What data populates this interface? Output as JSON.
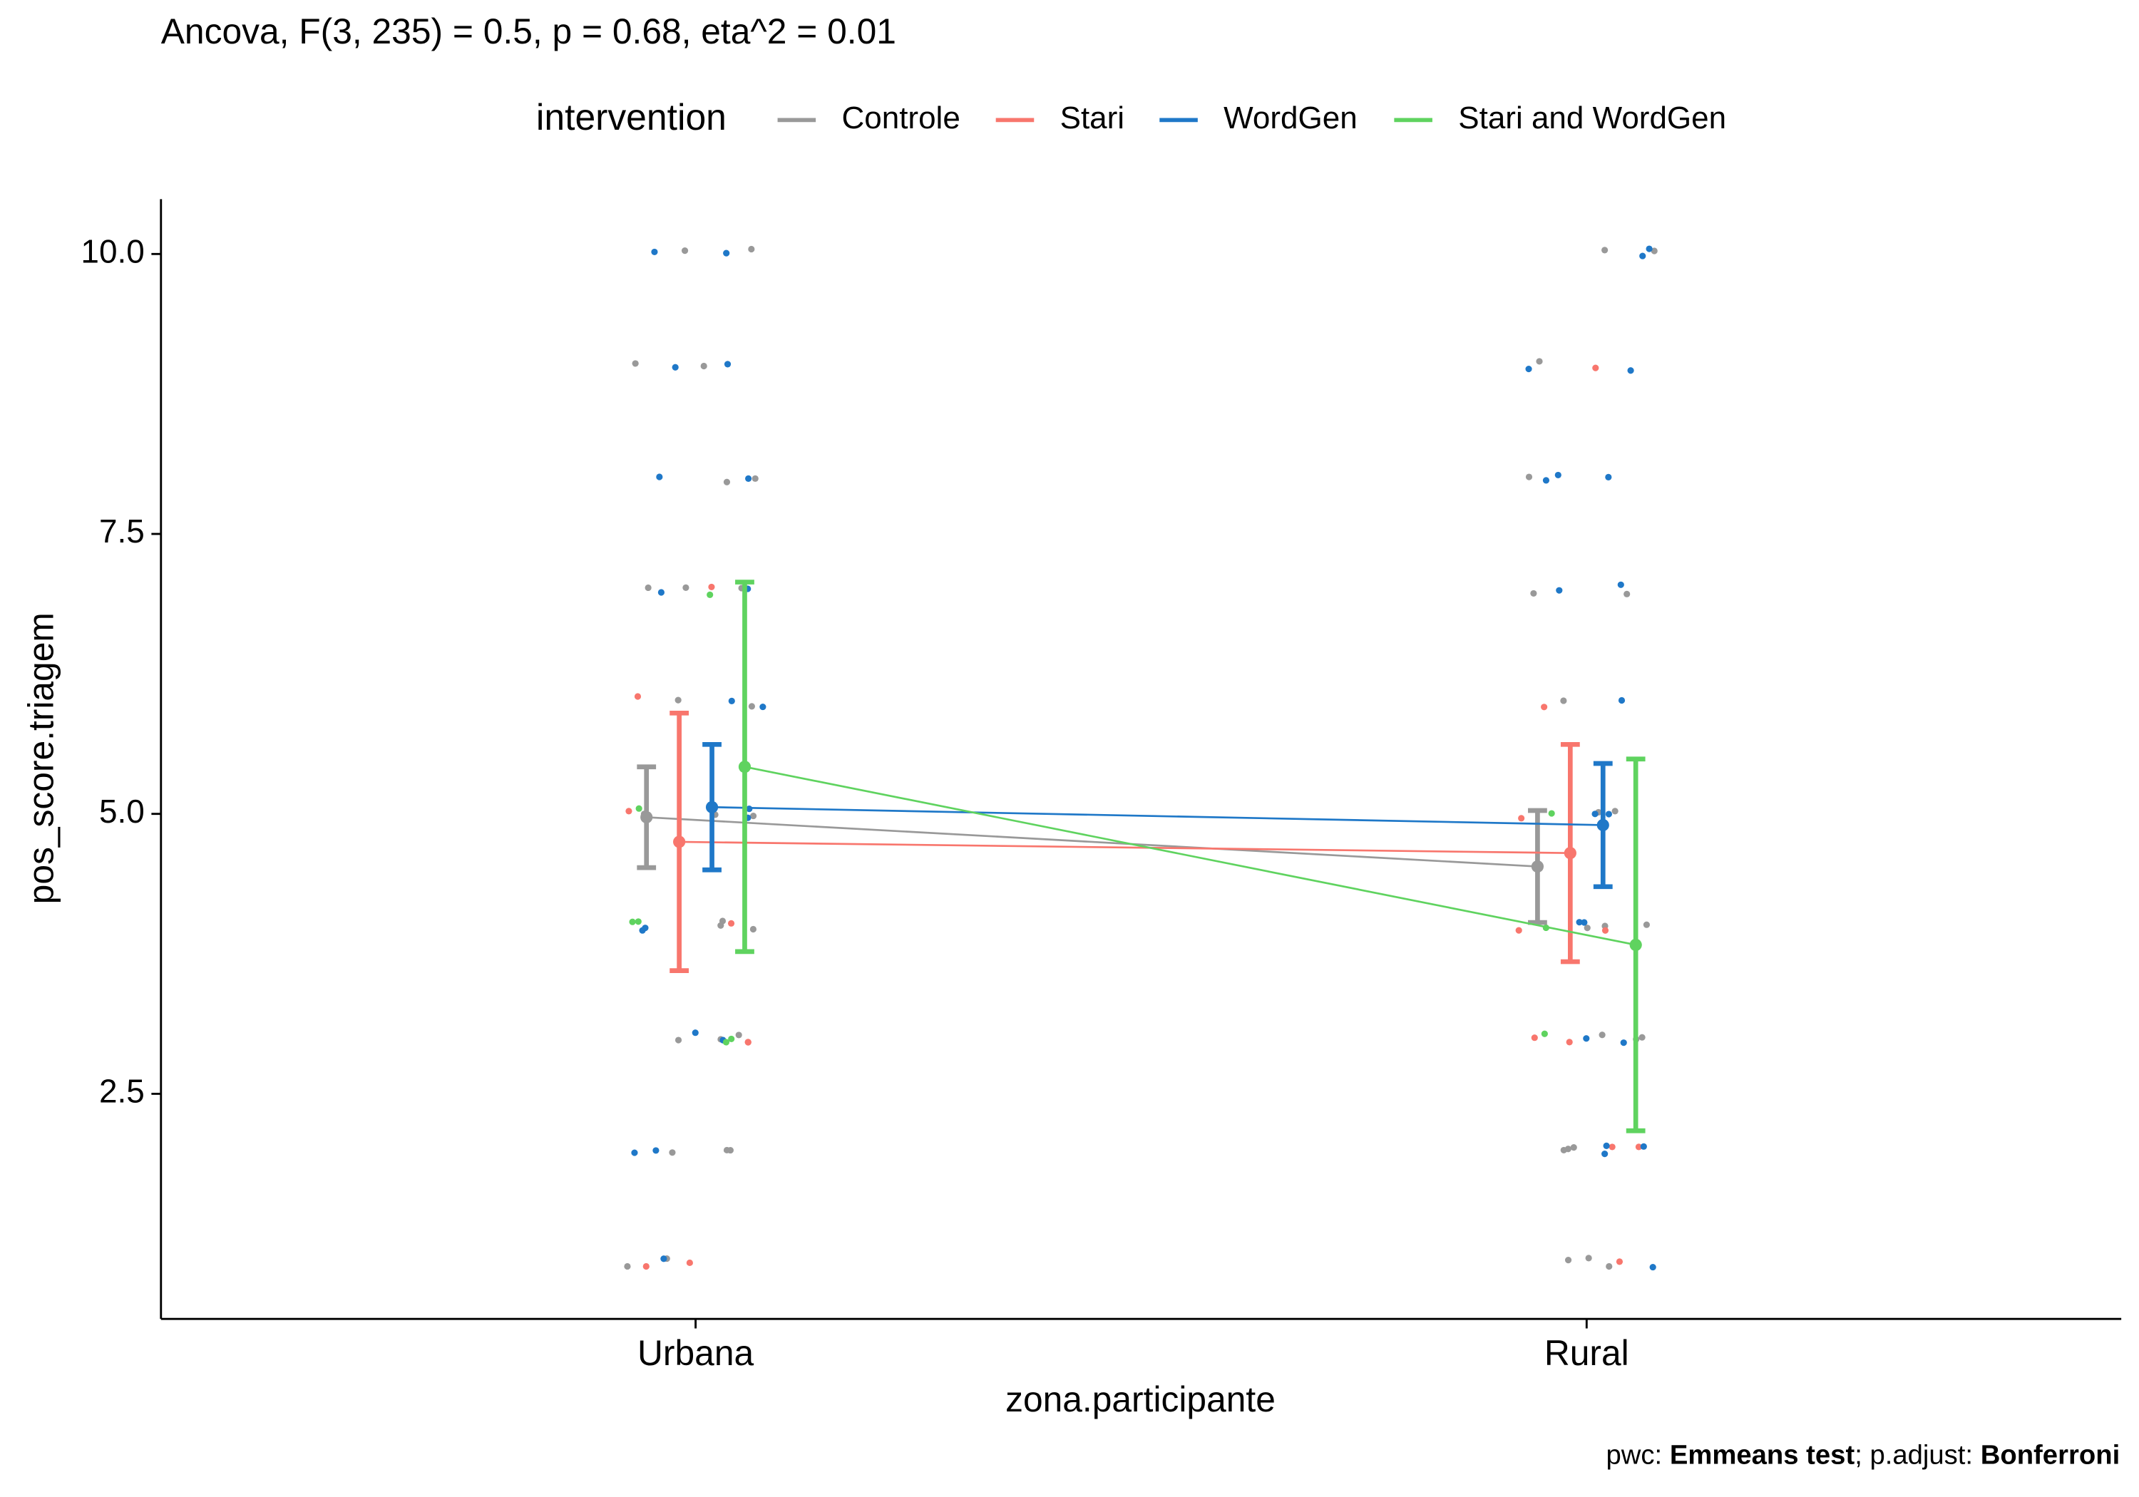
{
  "chart_data": {
    "type": "line",
    "title": "Ancova, F(3, 235) = 0.5, p = 0.68, eta^2 = 0.01",
    "legend_title": "intervention",
    "legend_position": "top",
    "x_label": "zona.participante",
    "y_label": "pos_score.triagem",
    "caption": [
      "pwc:",
      "Emmeans test",
      "; p.adjust:",
      "Bonferroni"
    ],
    "categories": [
      "Urbana",
      "Rural"
    ],
    "ylim": [
      0.49,
      10.49
    ],
    "yticks": [
      2.5,
      {
        "value": 5,
        "label": "5.0"
      },
      7.5,
      {
        "value": 10,
        "label": "10.0"
      }
    ],
    "series": [
      {
        "name": "Controle",
        "color": "#999999",
        "values": [
          4.97,
          4.53
        ],
        "lower": [
          4.52,
          4.03
        ],
        "upper": [
          5.42,
          5.03
        ],
        "points": [
          [
            1,
            1,
            2,
            2,
            2,
            3,
            3,
            3,
            4,
            4,
            4,
            5,
            5,
            5,
            6,
            6,
            7,
            7,
            7,
            8,
            8,
            9,
            9,
            10,
            10
          ],
          [
            1,
            1,
            1,
            2,
            2,
            2,
            3,
            3,
            3,
            4,
            4,
            4,
            5,
            5,
            6,
            7,
            7,
            8,
            9,
            10,
            10
          ]
        ]
      },
      {
        "name": "Stari",
        "color": "#F8766D",
        "values": [
          4.75,
          4.65
        ],
        "lower": [
          3.6,
          3.68
        ],
        "upper": [
          5.9,
          5.62
        ],
        "points": [
          [
            1,
            1,
            3,
            3,
            4,
            5,
            6,
            7
          ],
          [
            1,
            2,
            2,
            3,
            3,
            4,
            4,
            5,
            6,
            9
          ]
        ]
      },
      {
        "name": "WordGen",
        "color": "#1F78C8",
        "values": [
          5.06,
          4.9
        ],
        "lower": [
          4.5,
          4.35
        ],
        "upper": [
          5.62,
          5.45
        ],
        "points": [
          [
            1,
            2,
            2,
            3,
            3,
            4,
            4,
            5,
            5,
            6,
            6,
            7,
            7,
            8,
            8,
            9,
            9,
            10,
            10
          ],
          [
            1,
            2,
            2,
            2,
            3,
            3,
            4,
            4,
            5,
            5,
            6,
            7,
            7,
            8,
            8,
            8,
            9,
            9,
            10,
            10
          ]
        ]
      },
      {
        "name": "Stari and WordGen",
        "color": "#5FD35F",
        "values": [
          5.42,
          3.83
        ],
        "lower": [
          3.77,
          2.17
        ],
        "upper": [
          7.07,
          5.49
        ],
        "points": [
          [
            3,
            3,
            4,
            4,
            5,
            7
          ],
          [
            3,
            4,
            5
          ]
        ]
      }
    ]
  }
}
